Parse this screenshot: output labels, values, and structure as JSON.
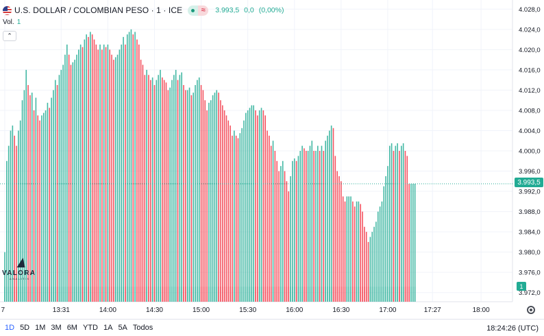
{
  "header": {
    "title": "U.S. DOLLAR / COLOMBIAN PESO · 1 · ICE",
    "last_value": "3.993,5",
    "change": "0,0",
    "change_pct": "(0,00%)",
    "toggle_b": "≈",
    "vol_label": "Vol.",
    "vol_value": "1",
    "collapse_glyph": "⌃"
  },
  "price_tag": "3.993,5",
  "vol_tag": "1",
  "watermark": {
    "word": "VALORA",
    "sub": "ANALITIK"
  },
  "bottom_bar": {
    "ranges": [
      "1D",
      "5D",
      "1M",
      "3M",
      "6M",
      "YTD",
      "1A",
      "5A",
      "Todos"
    ],
    "active_range": "1D",
    "clock": "18:24:26 (UTC)"
  },
  "colors": {
    "up": "#22ab94",
    "down": "#f23645",
    "text": "#131722",
    "grid": "#f0f3fa"
  },
  "chart_data": {
    "type": "bar",
    "ylim": [
      3970.2,
      4029.8
    ],
    "y_ticks": [
      {
        "value": 4028.0,
        "label": "4.028,0"
      },
      {
        "value": 4024.0,
        "label": "4.024,0"
      },
      {
        "value": 4020.0,
        "label": "4.020,0"
      },
      {
        "value": 4016.0,
        "label": "4.016,0"
      },
      {
        "value": 4012.0,
        "label": "4.012,0"
      },
      {
        "value": 4008.0,
        "label": "4.008,0"
      },
      {
        "value": 4004.0,
        "label": "4.004,0"
      },
      {
        "value": 4000.0,
        "label": "4.000,0"
      },
      {
        "value": 3996.0,
        "label": "3.996,0"
      },
      {
        "value": 3992.0,
        "label": "3.992,0"
      },
      {
        "value": 3988.0,
        "label": "3.988,0"
      },
      {
        "value": 3984.0,
        "label": "3.984,0"
      },
      {
        "value": 3980.0,
        "label": "3.980,0"
      },
      {
        "value": 3976.0,
        "label": "3.976,0"
      },
      {
        "value": 3972.0,
        "label": "3.972,0"
      }
    ],
    "x_ticks": [
      {
        "t": 0,
        "label": "7"
      },
      {
        "t": 29,
        "label": "13:31"
      },
      {
        "t": 53,
        "label": "14:00"
      },
      {
        "t": 77,
        "label": "14:30"
      },
      {
        "t": 101,
        "label": "15:00"
      },
      {
        "t": 125,
        "label": "15:30"
      },
      {
        "t": 149,
        "label": "16:00"
      },
      {
        "t": 173,
        "label": "16:30"
      },
      {
        "t": 197,
        "label": "17:00"
      },
      {
        "t": 220,
        "label": "17:27"
      },
      {
        "t": 245,
        "label": "18:00"
      }
    ],
    "t_max": 252,
    "series": [
      {
        "values": [
          3980.0,
          3998.0,
          4001.0,
          4004.0,
          4005.0,
          4003.0,
          4001.0,
          4004.0,
          4006.0,
          4010.0,
          4012.0,
          4016.0,
          4013.0,
          4011.0,
          4011.5,
          4008.0,
          4010.5,
          4007.0,
          4006.0,
          4007.0,
          4007.5,
          4008.0,
          4009.5,
          4008.5,
          4010.5,
          4012.0,
          4014.0,
          4013.0,
          4015.0,
          4016.0,
          4017.0,
          4019.0,
          4021.0,
          4019.0,
          4017.0,
          4017.5,
          4018.0,
          4019.0,
          4020.0,
          4021.0,
          4020.5,
          4022.0,
          4023.0,
          4022.5,
          4023.5,
          4023.0,
          4022.0,
          4021.0,
          4020.0,
          4021.0,
          4020.0,
          4021.0,
          4020.5,
          4021.0,
          4020.0,
          4019.0,
          4018.0,
          4018.5,
          4019.0,
          4020.0,
          4021.0,
          4022.5,
          4021.0,
          4023.0,
          4023.5,
          4024.0,
          4023.0,
          4023.5,
          4022.0,
          4021.0,
          4018.0,
          4017.0,
          4015.0,
          4016.0,
          4015.0,
          4014.0,
          4014.5,
          4013.0,
          4014.0,
          4015.0,
          4016.0,
          4014.5,
          4014.0,
          4013.5,
          4012.0,
          4012.5,
          4014.0,
          4015.0,
          4016.0,
          4014.0,
          4015.0,
          4015.5,
          4013.0,
          4012.0,
          4012.0,
          4012.5,
          4011.0,
          4011.5,
          4013.0,
          4014.0,
          4014.5,
          4013.0,
          4012.0,
          4010.0,
          4008.0,
          4009.5,
          4010.0,
          4011.0,
          4011.5,
          4012.0,
          4011.5,
          4010.0,
          4009.0,
          4008.0,
          4007.0,
          4006.0,
          4005.0,
          4003.0,
          4004.0,
          4003.0,
          4002.5,
          4003.5,
          4004.5,
          4006.0,
          4007.5,
          4008.0,
          4008.5,
          4009.0,
          4009.0,
          4008.0,
          4007.0,
          4008.0,
          4008.5,
          4008.0,
          4007.0,
          4004.0,
          4003.0,
          4001.0,
          4002.0,
          4000.0,
          3998.0,
          3996.0,
          3997.0,
          3998.0,
          3996.0,
          3994.0,
          3992.0,
          3995.0,
          3998.0,
          3998.5,
          3998.0,
          3999.0,
          4000.0,
          4001.0,
          4000.5,
          4000.0,
          4000.0,
          4001.0,
          4002.0,
          4000.0,
          4000.0,
          4001.0,
          4000.0,
          4001.0,
          4000.0,
          4002.0,
          4003.0,
          4004.0,
          4005.0,
          4004.5,
          3999.0,
          3996.0,
          3995.0,
          3994.0,
          3991.0,
          3990.0,
          3991.0,
          3991.0,
          3991.0,
          3990.0,
          3989.0,
          3990.0,
          3990.0,
          3989.5,
          3988.0,
          3985.0,
          3984.0,
          3982.0,
          3983.0,
          3984.0,
          3985.0,
          3986.0,
          3988.0,
          3989.0,
          3990.0,
          3993.0,
          3995.0,
          3997.0,
          4001.0,
          4001.5,
          4000.0,
          4001.0,
          4001.5,
          4000.0,
          4001.0,
          4001.5,
          4000.0,
          3999.0,
          3993.5,
          3993.5,
          3993.5,
          3993.5
        ]
      }
    ]
  }
}
